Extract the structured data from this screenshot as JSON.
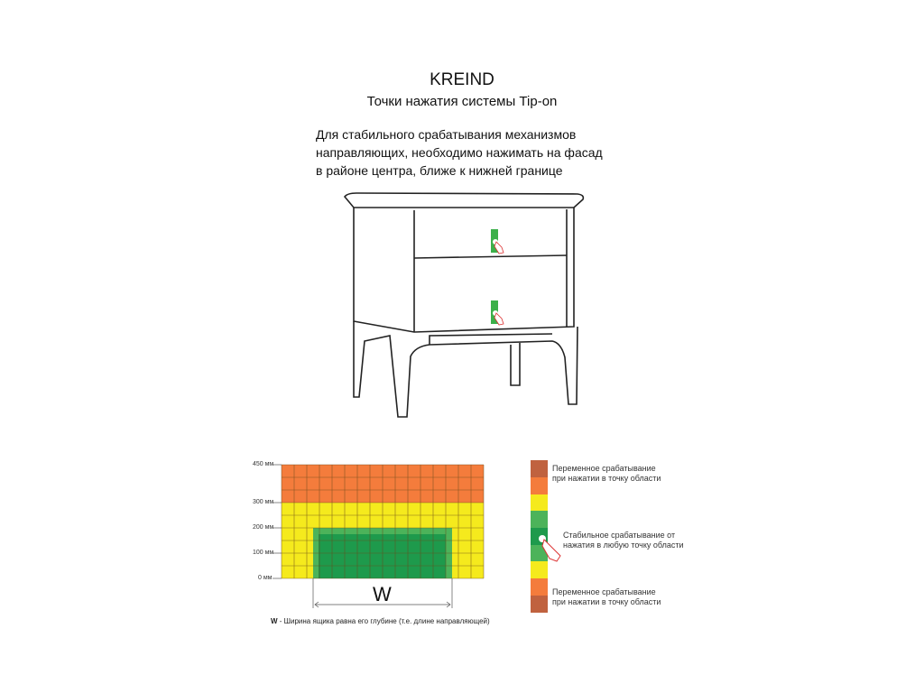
{
  "header": {
    "brand": "KREIND",
    "subtitle": "Точки нажатия системы Tip-on"
  },
  "instruction": [
    "Для стабильного срабатывания механизмов",
    "направляющих, необходимо нажимать на фасад",
    "в районе центра, ближе к нижней границе"
  ],
  "grid": {
    "y_ticks": [
      "450 мм",
      "300 мм",
      "200 мм",
      "100 мм",
      "0 мм"
    ],
    "columns": 16,
    "rows": 9,
    "width_label": "W",
    "note_bold": "W",
    "note": " - Ширина ящика равна его глубине (т.е. длине направляющей)"
  },
  "legend": {
    "variable_top": [
      "Переменное срабатывание",
      "при нажатии в точку области"
    ],
    "stable": [
      "Стабильное срабатывание от",
      "нажатия в любую точку области"
    ],
    "variable_bottom": [
      "Переменное срабатывание",
      "при нажатии в точку области"
    ]
  },
  "colors": {
    "brown": "#c0623f",
    "orange": "#f47c3c",
    "yellow": "#f5ea1d",
    "green": "#4cb35a",
    "dark_green": "#1e9a4c"
  }
}
